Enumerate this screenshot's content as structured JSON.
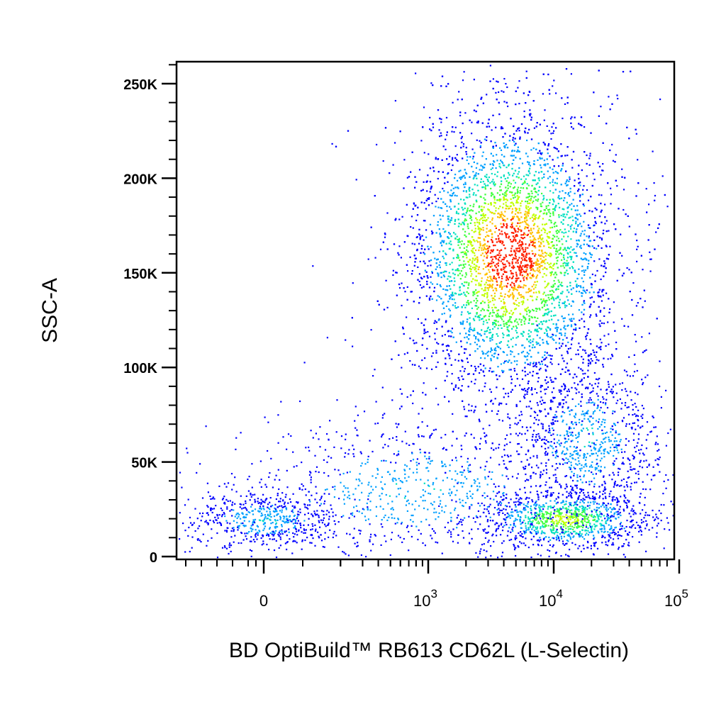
{
  "chart_data": {
    "type": "scatter",
    "subtype": "flow-cytometry pseudocolor density dot plot",
    "title": "",
    "xlabel": "BD OptiBuild™ RB613 CD62L (L-Selectin)",
    "ylabel": "SSC-A",
    "x_scale": "biexponential (linear near zero, log above ~10^2)",
    "y_scale": "linear",
    "ylim": [
      0,
      262144
    ],
    "y_ticks": [
      {
        "value": 0,
        "label": "0"
      },
      {
        "value": 50000,
        "label": "50K"
      },
      {
        "value": 100000,
        "label": "100K"
      },
      {
        "value": 150000,
        "label": "150K"
      },
      {
        "value": 200000,
        "label": "200K"
      },
      {
        "value": 250000,
        "label": "250K"
      }
    ],
    "x_ticks": [
      {
        "value": 0,
        "base": "0",
        "exp": ""
      },
      {
        "value": 1000,
        "base": "10",
        "exp": "3"
      },
      {
        "value": 10000,
        "base": "10",
        "exp": "4"
      },
      {
        "value": 100000,
        "base": "10",
        "exp": "5"
      }
    ],
    "colormap": [
      "#0000ff",
      "#00a0ff",
      "#00e0c0",
      "#40ff40",
      "#c0ff00",
      "#ffc000",
      "#ff2000"
    ],
    "grid": false,
    "legend": "none",
    "populations": [
      {
        "description": "main SSC-high, CD62L-intermediate cluster",
        "x_center": 4500,
        "y_center": 160000,
        "x_spread_decades": 0.42,
        "y_spread": 38000,
        "relative_count": 0.62
      },
      {
        "description": "low-SSC CD62L-high cluster",
        "x_center": 12000,
        "y_center": 20000,
        "x_spread_decades": 0.35,
        "y_spread": 8000,
        "relative_count": 0.12
      },
      {
        "description": "mid-SSC CD62L-high cluster",
        "x_center": 18000,
        "y_center": 62000,
        "x_spread_decades": 0.3,
        "y_spread": 22000,
        "relative_count": 0.1
      },
      {
        "description": "negative low-SSC cluster",
        "x_center": 0,
        "y_center": 20000,
        "x_spread_decades": 0.3,
        "y_spread": 8000,
        "relative_count": 0.06
      },
      {
        "description": "diffuse low/mid-SSC population",
        "x_center": 800,
        "y_center": 35000,
        "x_spread_decades": 0.8,
        "y_spread": 20000,
        "relative_count": 0.1
      }
    ]
  }
}
